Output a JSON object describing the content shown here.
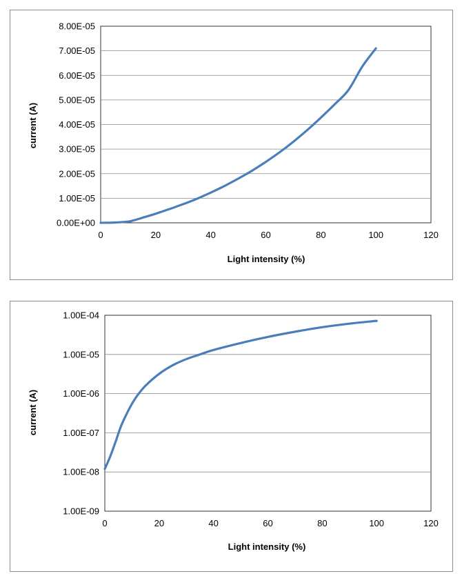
{
  "chart_data": [
    {
      "type": "line",
      "xlabel": "Light intensity (%)",
      "ylabel": "current (A)",
      "xlim": [
        0,
        120
      ],
      "ylim": [
        0,
        8e-05
      ],
      "y_scale": "linear",
      "grid": "horizontal",
      "x_ticks": [
        "0",
        "20",
        "40",
        "60",
        "80",
        "100",
        "120"
      ],
      "y_ticks": [
        "0.00E+00",
        "1.00E-05",
        "2.00E-05",
        "3.00E-05",
        "4.00E-05",
        "5.00E-05",
        "6.00E-05",
        "7.00E-05",
        "8.00E-05"
      ],
      "line_color": "#4a7ebb",
      "series": [
        {
          "x": [
            0,
            5,
            10,
            12,
            15,
            20,
            25,
            30,
            35,
            40,
            45,
            50,
            55,
            60,
            65,
            70,
            75,
            80,
            85,
            90,
            95,
            100
          ],
          "y": [
            0,
            1e-07,
            5e-07,
            1e-06,
            2e-06,
            3.7e-06,
            5.6e-06,
            7.6e-06,
            9.8e-06,
            1.23e-05,
            1.5e-05,
            1.8e-05,
            2.12e-05,
            2.48e-05,
            2.87e-05,
            3.3e-05,
            3.77e-05,
            4.28e-05,
            4.82e-05,
            5.4e-05,
            6.35e-05,
            7.1e-05
          ]
        }
      ]
    },
    {
      "type": "line",
      "xlabel": "Light intensity (%)",
      "ylabel": "current (A)",
      "xlim": [
        0,
        120
      ],
      "ylim": [
        1e-09,
        0.0001
      ],
      "y_scale": "log",
      "grid": "horizontal",
      "x_ticks": [
        "0",
        "20",
        "40",
        "60",
        "80",
        "100",
        "120"
      ],
      "y_ticks": [
        "1.00E-09",
        "1.00E-08",
        "1.00E-07",
        "1.00E-06",
        "1.00E-05",
        "1.00E-04"
      ],
      "line_color": "#4a7ebb",
      "series": [
        {
          "x": [
            0,
            2,
            4,
            6,
            8,
            10,
            12,
            15,
            20,
            25,
            30,
            35,
            40,
            50,
            60,
            70,
            80,
            90,
            100
          ],
          "y": [
            1.2e-08,
            2.5e-08,
            6e-08,
            1.5e-07,
            3e-07,
            5.5e-07,
            9e-07,
            1.6e-06,
            3.2e-06,
            5.3e-06,
            7.6e-06,
            1e-05,
            1.3e-05,
            1.95e-05,
            2.8e-05,
            3.8e-05,
            4.95e-05,
            6.1e-05,
            7.2e-05
          ]
        }
      ]
    }
  ]
}
